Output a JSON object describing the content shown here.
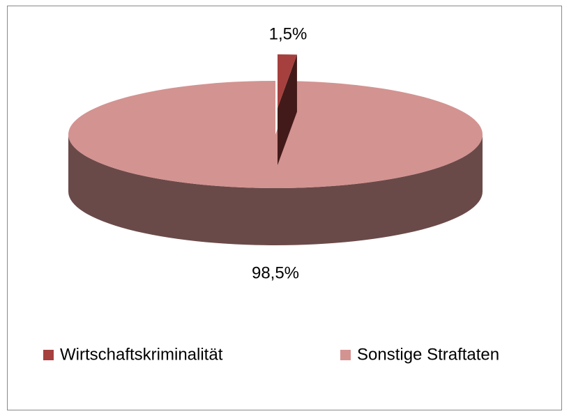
{
  "chart_data": {
    "type": "pie3d",
    "categories": [
      "Wirtschaftskriminalität",
      "Sonstige Straftaten"
    ],
    "values": [
      1.5,
      98.5
    ],
    "value_labels": [
      "1,5%",
      "98,5%"
    ],
    "colors": [
      "#a5403e",
      "#d39391"
    ],
    "legend": "bottom"
  }
}
